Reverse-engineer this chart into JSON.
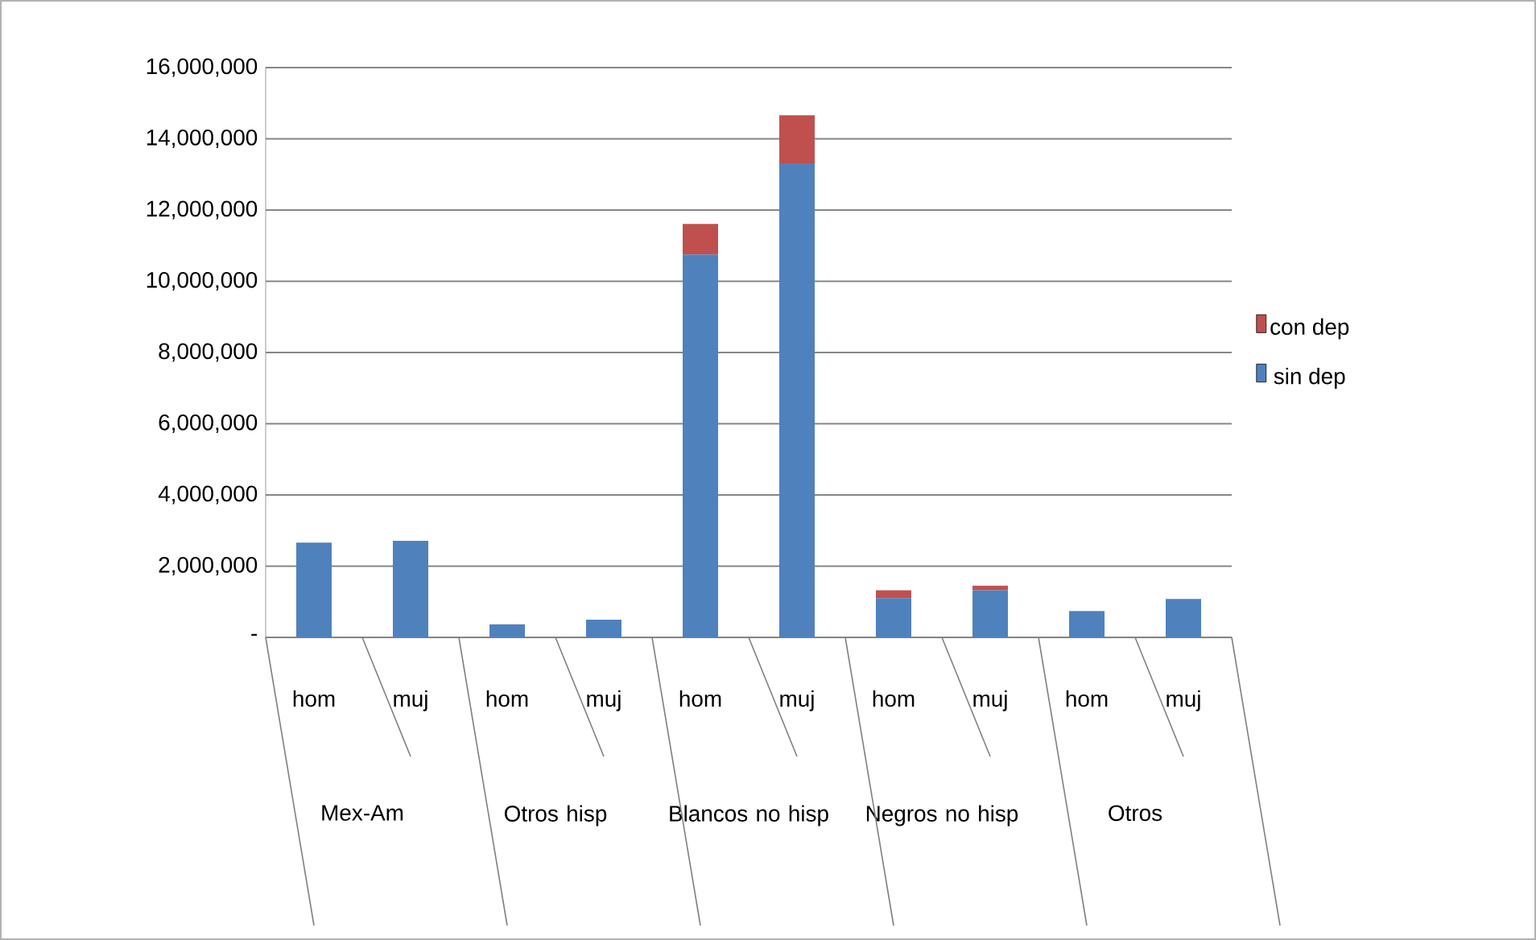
{
  "chart_data": {
    "type": "bar",
    "stacked": true,
    "categories": [
      "hom",
      "muj",
      "hom",
      "muj",
      "hom",
      "muj",
      "hom",
      "muj",
      "hom",
      "muj"
    ],
    "annotations": [
      "Mex-Am",
      "Otros hisp",
      "Blancos no hisp",
      "Negros no hisp",
      "Otros"
    ],
    "series": [
      {
        "name": "sin dep",
        "color": "#4f81bd",
        "values": [
          2660000,
          2710000,
          370000,
          500000,
          10750000,
          13310000,
          1100000,
          1320000,
          740000,
          1080000
        ]
      },
      {
        "name": "con dep",
        "color": "#c0504d",
        "values": [
          0,
          0,
          0,
          0,
          860000,
          1350000,
          220000,
          130000,
          0,
          0
        ]
      }
    ],
    "ylim": [
      0,
      16000000
    ],
    "yticks": [
      {
        "value": 0,
        "label": "-"
      },
      {
        "value": 2000000,
        "label": "2,000,000"
      },
      {
        "value": 4000000,
        "label": "4,000,000"
      },
      {
        "value": 6000000,
        "label": "6,000,000"
      },
      {
        "value": 8000000,
        "label": "8,000,000"
      },
      {
        "value": 10000000,
        "label": "10,000,000"
      },
      {
        "value": 12000000,
        "label": "12,000,000"
      },
      {
        "value": 14000000,
        "label": "14,000,000"
      },
      {
        "value": 16000000,
        "label": "16,000,000"
      }
    ],
    "grid": "y",
    "legend": "right"
  }
}
